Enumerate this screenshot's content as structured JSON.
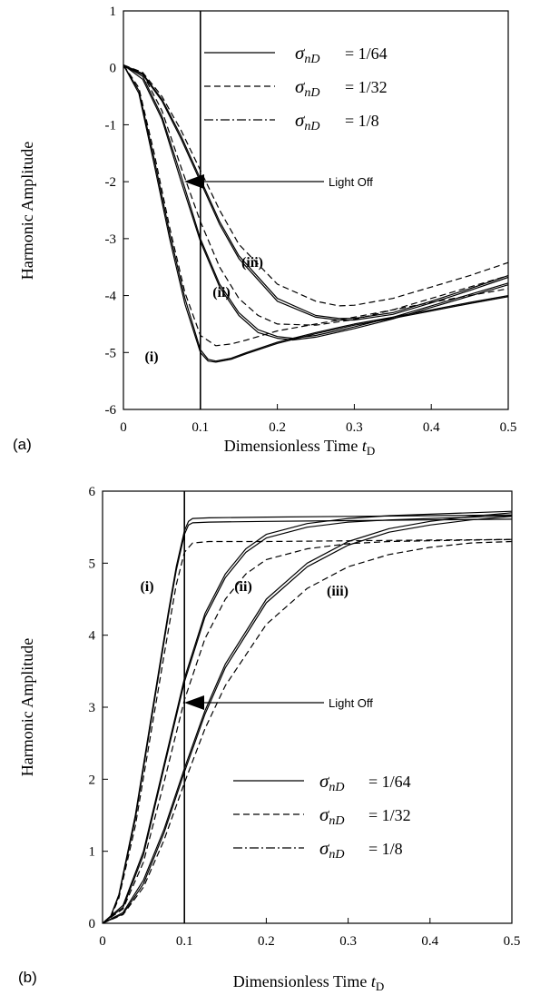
{
  "chart_data": [
    {
      "panel_label": "(a)",
      "type": "line",
      "xlabel": "Dimensionless Time",
      "xlabel_sub": "t",
      "xlabel_subscript": "D",
      "ylabel": "Harmonic Amplitude",
      "xlim": [
        0,
        0.5
      ],
      "ylim": [
        -6,
        1
      ],
      "xticks": [
        "0",
        "0.1",
        "0.2",
        "0.3",
        "0.4",
        "0.5"
      ],
      "yticks": [
        "1",
        "0",
        "-1",
        "-2",
        "-3",
        "-4",
        "-5",
        "-6"
      ],
      "light_off_x": 0.1,
      "annotation": {
        "text": "Light Off",
        "x": 0.1,
        "y": -2.0
      },
      "legend": {
        "position": "top-right",
        "symbol": "σ",
        "subscript": "nD",
        "entries": [
          {
            "style": "solid",
            "value": "= 1/64"
          },
          {
            "style": "dashed",
            "value": "= 1/32"
          },
          {
            "style": "dashdot",
            "value": "= 1/8"
          }
        ]
      },
      "curve_labels": [
        {
          "text": "(i)",
          "x": 0.07,
          "y": -4.7
        },
        {
          "text": "(ii)",
          "x": 0.17,
          "y": -4.05
        },
        {
          "text": "(iii)",
          "x": 0.245,
          "y": -3.3
        }
      ],
      "series": [
        {
          "group": "(i)",
          "style": "solid",
          "x": [
            0,
            0.02,
            0.04,
            0.06,
            0.08,
            0.1,
            0.11,
            0.12,
            0.14,
            0.16,
            0.2,
            0.25,
            0.3,
            0.35,
            0.4,
            0.45,
            0.5
          ],
          "y": [
            0.05,
            -0.4,
            -1.6,
            -2.9,
            -4.05,
            -4.95,
            -5.12,
            -5.15,
            -5.1,
            -5.0,
            -4.82,
            -4.65,
            -4.5,
            -4.38,
            -4.25,
            -4.12,
            -4.0
          ]
        },
        {
          "group": "(i)",
          "style": "solid",
          "x": [
            0,
            0.02,
            0.04,
            0.06,
            0.08,
            0.1,
            0.11,
            0.12,
            0.14,
            0.16,
            0.2,
            0.25,
            0.3,
            0.35,
            0.4,
            0.45,
            0.5
          ],
          "y": [
            0.05,
            -0.45,
            -1.7,
            -3.0,
            -4.15,
            -5.0,
            -5.15,
            -5.17,
            -5.12,
            -5.02,
            -4.84,
            -4.67,
            -4.52,
            -4.4,
            -4.27,
            -4.14,
            -4.02
          ]
        },
        {
          "group": "(i)",
          "style": "dashed",
          "x": [
            0,
            0.02,
            0.04,
            0.06,
            0.08,
            0.1,
            0.12,
            0.14,
            0.16,
            0.2,
            0.25,
            0.3,
            0.35,
            0.4,
            0.45,
            0.5
          ],
          "y": [
            0.05,
            -0.35,
            -1.5,
            -2.8,
            -3.95,
            -4.7,
            -4.88,
            -4.85,
            -4.78,
            -4.62,
            -4.5,
            -4.38,
            -4.25,
            -4.12,
            -4.0,
            -3.88
          ]
        },
        {
          "group": "(ii)",
          "style": "solid",
          "x": [
            0,
            0.025,
            0.05,
            0.075,
            0.1,
            0.125,
            0.15,
            0.175,
            0.2,
            0.22,
            0.25,
            0.3,
            0.35,
            0.4,
            0.45,
            0.5
          ],
          "y": [
            0.05,
            -0.15,
            -0.85,
            -1.9,
            -3.0,
            -3.8,
            -4.3,
            -4.6,
            -4.72,
            -4.75,
            -4.7,
            -4.55,
            -4.38,
            -4.18,
            -3.98,
            -3.78
          ]
        },
        {
          "group": "(ii)",
          "style": "solid",
          "x": [
            0,
            0.025,
            0.05,
            0.075,
            0.1,
            0.125,
            0.15,
            0.175,
            0.2,
            0.22,
            0.25,
            0.3,
            0.35,
            0.4,
            0.45,
            0.5
          ],
          "y": [
            0.05,
            -0.2,
            -0.9,
            -2.0,
            -3.05,
            -3.85,
            -4.35,
            -4.65,
            -4.75,
            -4.78,
            -4.73,
            -4.58,
            -4.41,
            -4.21,
            -4.01,
            -3.81
          ]
        },
        {
          "group": "(ii)",
          "style": "dashed",
          "x": [
            0,
            0.025,
            0.05,
            0.075,
            0.1,
            0.125,
            0.15,
            0.175,
            0.2,
            0.25,
            0.3,
            0.35,
            0.4,
            0.45,
            0.5
          ],
          "y": [
            0.05,
            -0.1,
            -0.75,
            -1.75,
            -2.7,
            -3.5,
            -4.05,
            -4.35,
            -4.5,
            -4.52,
            -4.42,
            -4.25,
            -4.05,
            -3.85,
            -3.65
          ]
        },
        {
          "group": "(iii)",
          "style": "solid",
          "x": [
            0,
            0.025,
            0.05,
            0.075,
            0.1,
            0.125,
            0.15,
            0.2,
            0.25,
            0.28,
            0.3,
            0.35,
            0.4,
            0.45,
            0.5
          ],
          "y": [
            0.05,
            -0.1,
            -0.55,
            -1.2,
            -1.95,
            -2.7,
            -3.3,
            -4.05,
            -4.35,
            -4.4,
            -4.4,
            -4.3,
            -4.1,
            -3.88,
            -3.65
          ]
        },
        {
          "group": "(iii)",
          "style": "solid",
          "x": [
            0,
            0.025,
            0.05,
            0.075,
            0.1,
            0.125,
            0.15,
            0.2,
            0.25,
            0.28,
            0.3,
            0.35,
            0.4,
            0.45,
            0.5
          ],
          "y": [
            0.05,
            -0.12,
            -0.58,
            -1.25,
            -2.0,
            -2.75,
            -3.35,
            -4.1,
            -4.38,
            -4.43,
            -4.43,
            -4.33,
            -4.13,
            -3.91,
            -3.68
          ]
        },
        {
          "group": "(iii)",
          "style": "dashed",
          "x": [
            0,
            0.025,
            0.05,
            0.075,
            0.1,
            0.125,
            0.15,
            0.2,
            0.25,
            0.28,
            0.3,
            0.35,
            0.4,
            0.45,
            0.5
          ],
          "y": [
            0.05,
            -0.08,
            -0.5,
            -1.1,
            -1.8,
            -2.5,
            -3.1,
            -3.8,
            -4.1,
            -4.18,
            -4.17,
            -4.05,
            -3.85,
            -3.65,
            -3.42
          ]
        }
      ]
    },
    {
      "panel_label": "(b)",
      "type": "line",
      "xlabel": "Dimensionless Time",
      "xlabel_sub": "t",
      "xlabel_subscript": "D",
      "ylabel": "Harmonic Amplitude",
      "xlim": [
        0,
        0.5
      ],
      "ylim": [
        0,
        6
      ],
      "xticks": [
        "0",
        "0.1",
        "0.2",
        "0.3",
        "0.4",
        "0.5"
      ],
      "yticks": [
        "6",
        "5",
        "4",
        "3",
        "2",
        "1",
        "0"
      ],
      "light_off_x": 0.1,
      "annotation": {
        "text": "Light Off",
        "x": 0.1,
        "y": 2.9
      },
      "legend": {
        "position": "bottom-right",
        "symbol": "σ",
        "subscript": "nD",
        "entries": [
          {
            "style": "solid",
            "value": "= 1/64"
          },
          {
            "style": "dashed",
            "value": "= 1/32"
          },
          {
            "style": "dashdot",
            "value": "= 1/8"
          }
        ]
      },
      "curve_labels": [
        {
          "text": "(i)",
          "x": 0.058,
          "y": 4.97
        },
        {
          "text": "(ii)",
          "x": 0.175,
          "y": 4.97
        },
        {
          "text": "(iii)",
          "x": 0.295,
          "y": 4.9
        }
      ],
      "series": [
        {
          "group": "(i)",
          "style": "solid",
          "x": [
            0,
            0.01,
            0.02,
            0.04,
            0.06,
            0.08,
            0.09,
            0.1,
            0.105,
            0.11,
            0.13,
            0.2,
            0.3,
            0.4,
            0.5
          ],
          "y": [
            0,
            0.1,
            0.4,
            1.5,
            2.9,
            4.3,
            4.95,
            5.45,
            5.58,
            5.62,
            5.63,
            5.64,
            5.65,
            5.66,
            5.67
          ]
        },
        {
          "group": "(i)",
          "style": "solid",
          "x": [
            0,
            0.01,
            0.02,
            0.04,
            0.06,
            0.08,
            0.09,
            0.1,
            0.105,
            0.11,
            0.13,
            0.2,
            0.3,
            0.4,
            0.5
          ],
          "y": [
            0,
            0.1,
            0.38,
            1.45,
            2.85,
            4.25,
            4.9,
            5.4,
            5.53,
            5.56,
            5.57,
            5.58,
            5.59,
            5.6,
            5.61
          ]
        },
        {
          "group": "(i)",
          "style": "dashed",
          "x": [
            0,
            0.01,
            0.02,
            0.04,
            0.06,
            0.08,
            0.09,
            0.1,
            0.11,
            0.13,
            0.2,
            0.3,
            0.4,
            0.5
          ],
          "y": [
            0,
            0.08,
            0.35,
            1.35,
            2.7,
            4.05,
            4.7,
            5.15,
            5.28,
            5.3,
            5.3,
            5.31,
            5.32,
            5.33
          ]
        },
        {
          "group": "(ii)",
          "style": "solid",
          "x": [
            0,
            0.025,
            0.05,
            0.075,
            0.1,
            0.125,
            0.15,
            0.175,
            0.2,
            0.25,
            0.3,
            0.35,
            0.4,
            0.45,
            0.5
          ],
          "y": [
            0,
            0.25,
            1.0,
            2.2,
            3.4,
            4.3,
            4.85,
            5.2,
            5.4,
            5.55,
            5.62,
            5.66,
            5.68,
            5.7,
            5.72
          ]
        },
        {
          "group": "(ii)",
          "style": "solid",
          "x": [
            0,
            0.025,
            0.05,
            0.075,
            0.1,
            0.125,
            0.15,
            0.175,
            0.2,
            0.25,
            0.3,
            0.35,
            0.4,
            0.45,
            0.5
          ],
          "y": [
            0,
            0.22,
            0.95,
            2.15,
            3.35,
            4.25,
            4.8,
            5.15,
            5.35,
            5.5,
            5.57,
            5.6,
            5.62,
            5.64,
            5.66
          ]
        },
        {
          "group": "(ii)",
          "style": "dashed",
          "x": [
            0,
            0.025,
            0.05,
            0.075,
            0.1,
            0.125,
            0.15,
            0.175,
            0.2,
            0.25,
            0.3,
            0.35,
            0.4,
            0.45,
            0.5
          ],
          "y": [
            0,
            0.2,
            0.85,
            1.95,
            3.1,
            3.95,
            4.5,
            4.85,
            5.05,
            5.2,
            5.27,
            5.3,
            5.31,
            5.32,
            5.33
          ]
        },
        {
          "group": "(iii)",
          "style": "solid",
          "x": [
            0,
            0.025,
            0.05,
            0.075,
            0.1,
            0.125,
            0.15,
            0.2,
            0.25,
            0.3,
            0.35,
            0.4,
            0.45,
            0.5
          ],
          "y": [
            0,
            0.15,
            0.6,
            1.3,
            2.15,
            2.95,
            3.6,
            4.5,
            5.0,
            5.3,
            5.48,
            5.58,
            5.65,
            5.7
          ]
        },
        {
          "group": "(iii)",
          "style": "solid",
          "x": [
            0,
            0.025,
            0.05,
            0.075,
            0.1,
            0.125,
            0.15,
            0.2,
            0.25,
            0.3,
            0.35,
            0.4,
            0.45,
            0.5
          ],
          "y": [
            0,
            0.13,
            0.55,
            1.25,
            2.1,
            2.9,
            3.55,
            4.45,
            4.95,
            5.25,
            5.43,
            5.53,
            5.6,
            5.65
          ]
        },
        {
          "group": "(iii)",
          "style": "dashed",
          "x": [
            0,
            0.025,
            0.05,
            0.075,
            0.1,
            0.125,
            0.15,
            0.2,
            0.25,
            0.3,
            0.35,
            0.4,
            0.45,
            0.5
          ],
          "y": [
            0,
            0.12,
            0.5,
            1.15,
            1.95,
            2.7,
            3.3,
            4.15,
            4.65,
            4.95,
            5.12,
            5.22,
            5.28,
            5.3
          ]
        }
      ]
    }
  ]
}
